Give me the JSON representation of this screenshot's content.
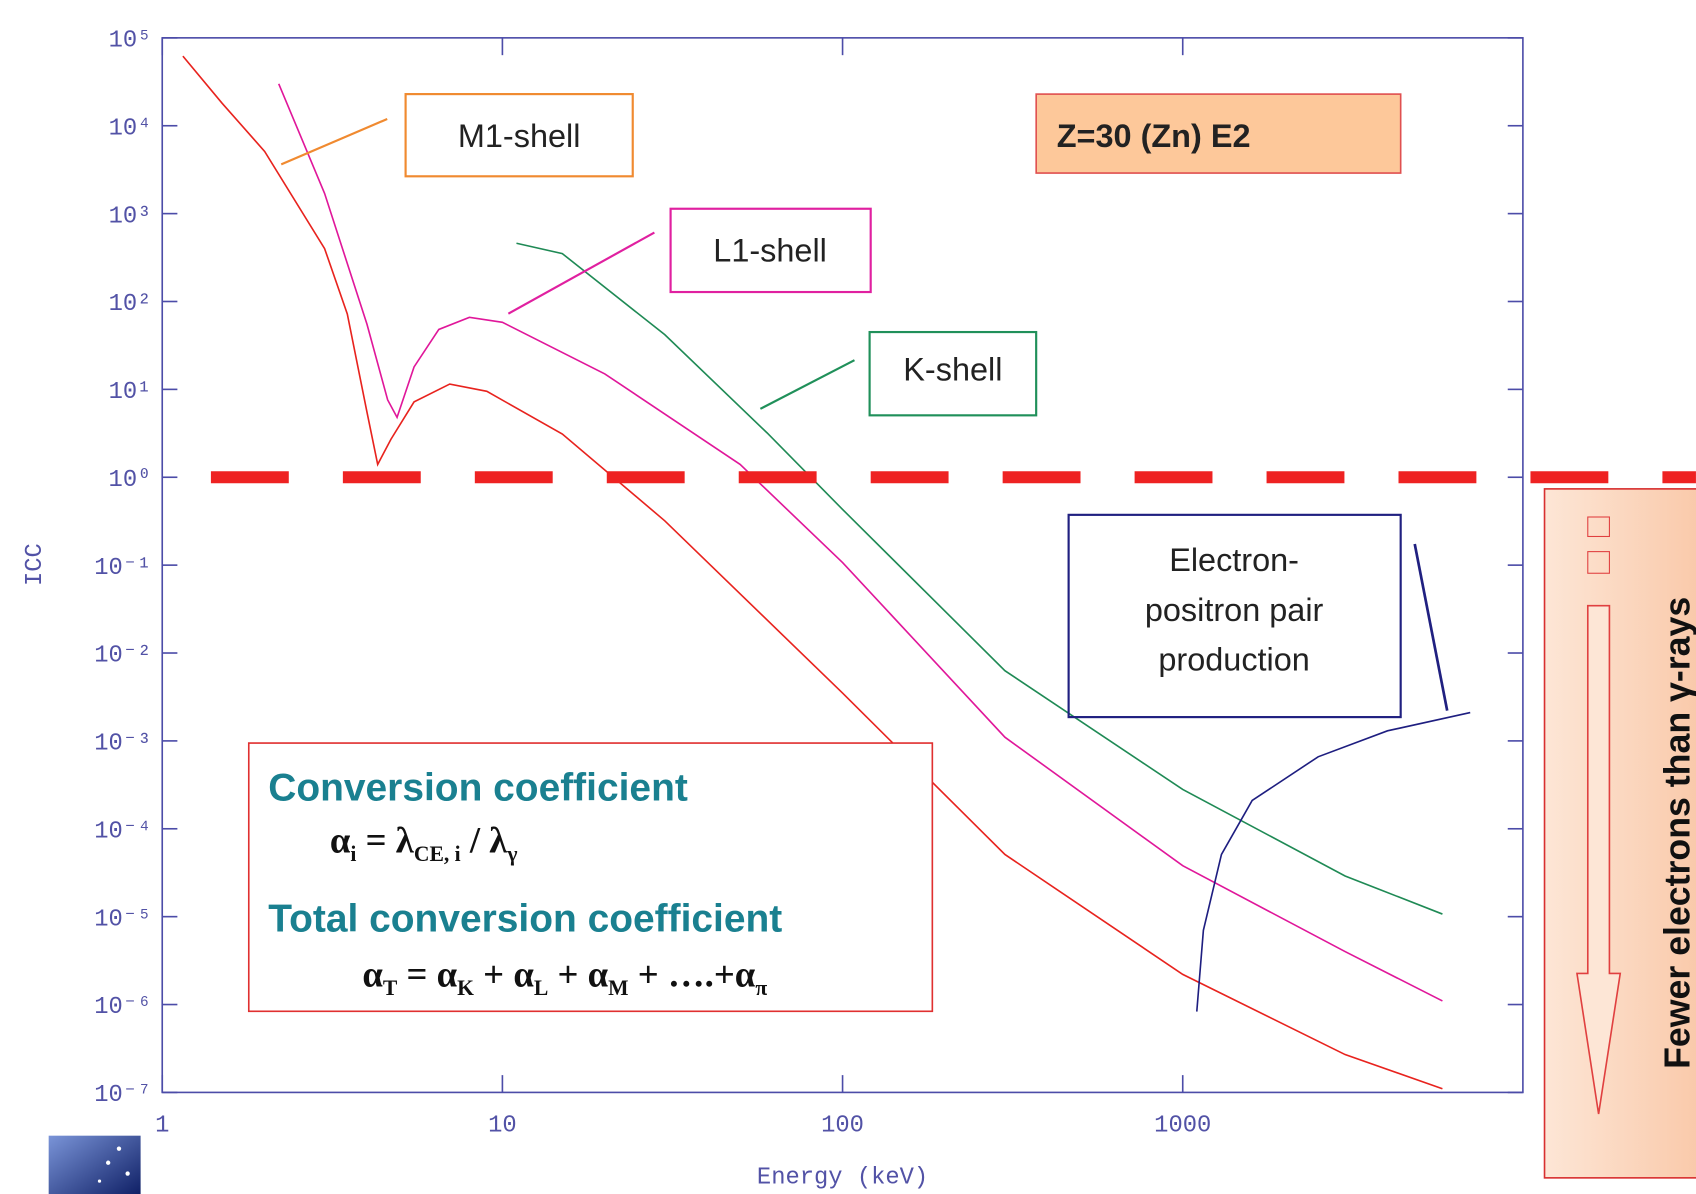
{
  "chart_data": {
    "type": "line",
    "x_label": "Energy (keV)",
    "y_label": "ICC",
    "xscale": "log",
    "yscale": "log",
    "xlim": [
      1,
      10000
    ],
    "ylim": [
      1e-07,
      100000
    ],
    "xticks": [
      1,
      10,
      100,
      1000
    ],
    "yticks": [
      {
        "value": 100000,
        "label": "10⁵"
      },
      {
        "value": 10000,
        "label": "10⁴"
      },
      {
        "value": 1000,
        "label": "10³"
      },
      {
        "value": 100,
        "label": "10²"
      },
      {
        "value": 10,
        "label": "10¹"
      },
      {
        "value": 1,
        "label": "10⁰"
      },
      {
        "value": 0.1,
        "label": "10⁻¹"
      },
      {
        "value": 0.01,
        "label": "10⁻²"
      },
      {
        "value": 0.001,
        "label": "10⁻³"
      },
      {
        "value": 0.0001,
        "label": "10⁻⁴"
      },
      {
        "value": 1e-05,
        "label": "10⁻⁵"
      },
      {
        "value": 1e-06,
        "label": "10⁻⁶"
      },
      {
        "value": 1e-07,
        "label": "10⁻⁷"
      }
    ],
    "series": [
      {
        "name": "M1-shell",
        "color": "#e8231e",
        "x": [
          1.15,
          1.5,
          2,
          3,
          3.5,
          4,
          4.3,
          4.7,
          5.5,
          7,
          9,
          15,
          30,
          100,
          300,
          1000,
          3000,
          5800
        ],
        "values": [
          62000,
          18000,
          5100,
          400,
          72,
          5.5,
          1.4,
          2.7,
          7.2,
          11.5,
          9.5,
          3.1,
          0.32,
          0.0035,
          5.1e-05,
          2.2e-06,
          2.7e-07,
          1.1e-07
        ]
      },
      {
        "name": "L1-shell",
        "color": "#e0179a",
        "x": [
          2.2,
          3,
          4,
          4.6,
          4.9,
          5.5,
          6.5,
          8,
          10,
          20,
          50,
          100,
          300,
          1000,
          3000,
          5800
        ],
        "values": [
          30000,
          1700,
          55,
          7.6,
          4.8,
          18,
          48,
          66,
          58,
          15,
          1.4,
          0.107,
          0.0011,
          3.8e-05,
          4e-06,
          1.1e-06
        ]
      },
      {
        "name": "K-shell",
        "color": "#1f8a55",
        "x": [
          11,
          15,
          30,
          60,
          100,
          300,
          1000,
          3000,
          5800
        ],
        "values": [
          460,
          350,
          42,
          3.2,
          0.43,
          0.0063,
          0.00028,
          2.9e-05,
          1.07e-05
        ]
      },
      {
        "color": "#1e1e80",
        "x": [
          1100,
          1150,
          1300,
          1600,
          2500,
          4000,
          7000
        ],
        "values": [
          8.3e-07,
          7e-06,
          5.1e-05,
          0.00021,
          0.00066,
          0.0013,
          0.0021
        ]
      }
    ],
    "reference_line": {
      "y": 1,
      "color": "#ee2222"
    },
    "annotations": {
      "box_title": "Z=30 (Zn) E2",
      "pair_label": [
        "Electron-",
        "positron pair",
        "production"
      ],
      "heading_1": "Conversion coefficient",
      "formula_1": [
        "α",
        "i",
        " = λ",
        "CE, i",
        " / λ",
        "γ"
      ],
      "heading_2": "Total conversion coefficient",
      "formula_2": [
        "α",
        "T",
        " = α",
        "K",
        " + α",
        "L",
        " + α",
        "M",
        " + ….+α",
        "π"
      ],
      "side_note": "Fewer electrons than γ-rays"
    }
  }
}
